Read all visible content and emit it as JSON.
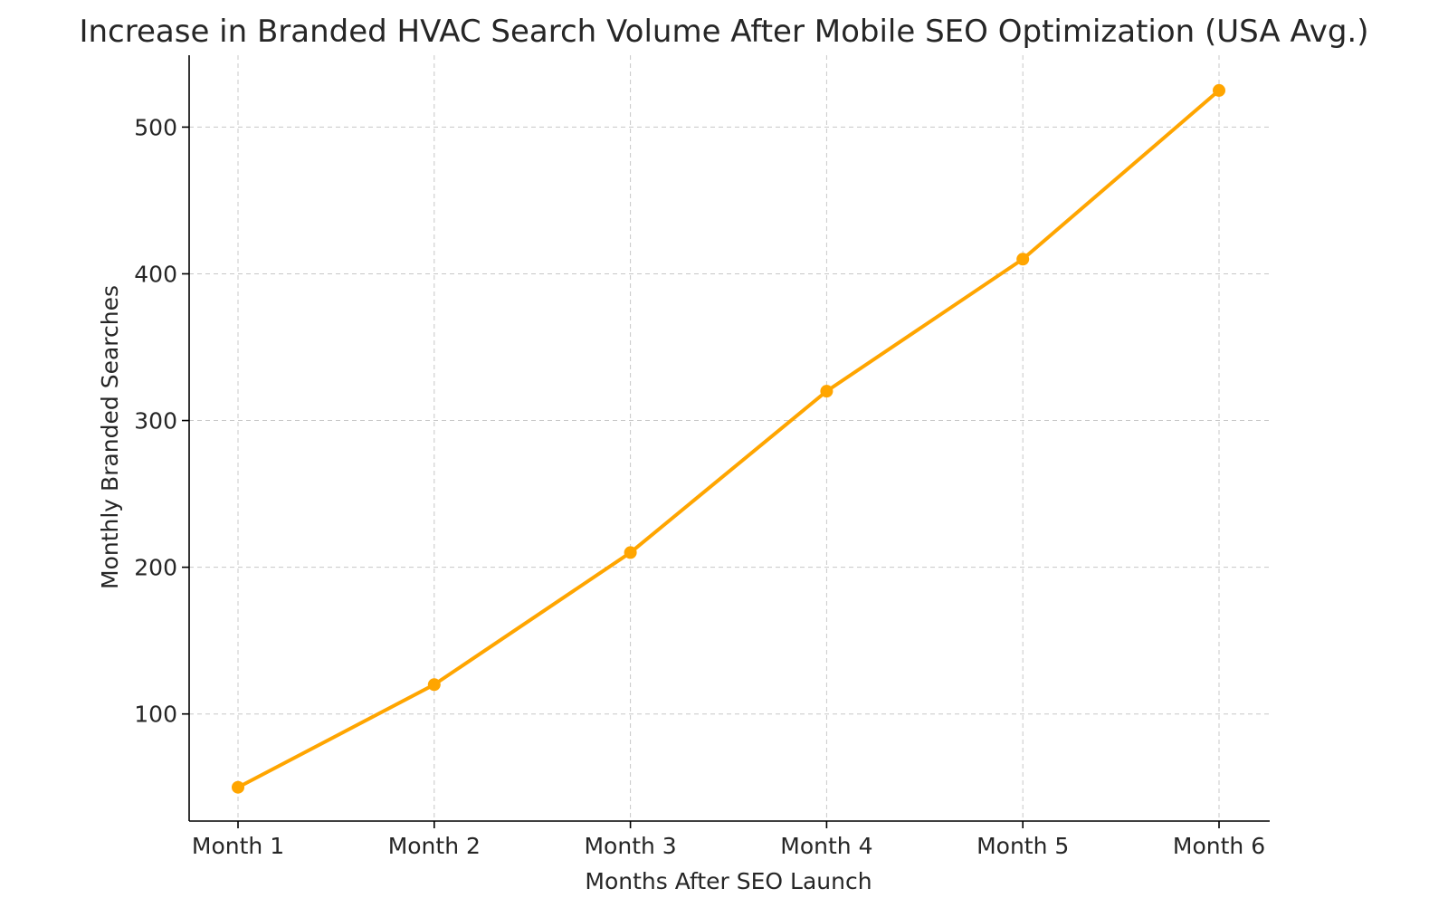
{
  "chart_data": {
    "type": "line",
    "title": "Increase in Branded HVAC Search Volume After Mobile SEO Optimization (USA Avg.)",
    "xlabel": "Months After SEO Launch",
    "ylabel": "Monthly Branded Searches",
    "categories": [
      "Month 1",
      "Month 2",
      "Month 3",
      "Month 4",
      "Month 5",
      "Month 6"
    ],
    "series": [
      {
        "values": [
          50,
          120,
          210,
          320,
          410,
          525
        ],
        "color": "#FFA500",
        "marker": "circle"
      }
    ],
    "ylim": [
      27,
      549
    ],
    "yticks": [
      100,
      200,
      300,
      400,
      500
    ],
    "grid": true,
    "legend": "none"
  }
}
